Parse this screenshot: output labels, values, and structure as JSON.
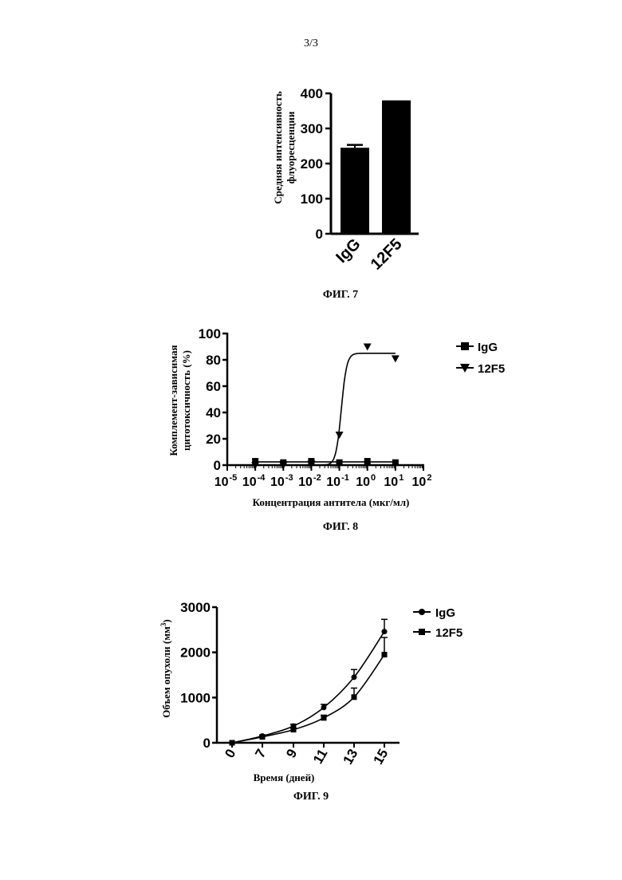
{
  "page_number": "3/3",
  "figures": [
    {
      "caption": "ФИГ. 7",
      "ylabel_lines": [
        "Средняя интенсивность",
        "флуоресценции"
      ],
      "chart_data": {
        "type": "bar",
        "categories": [
          "IgG",
          "12F5"
        ],
        "values": [
          245,
          380
        ],
        "errors": [
          8,
          0
        ],
        "ylim": [
          0,
          400
        ],
        "yticks": [
          "0",
          "100",
          "200",
          "300",
          "400"
        ]
      }
    },
    {
      "caption": "ФИГ. 8",
      "ylabel_lines": [
        "Комплемент-зависимая",
        "цитотоксичность (%)"
      ],
      "xlabel": "Концентрация антитела (мкг/мл)",
      "legend": [
        "IgG",
        "12F5"
      ],
      "chart_data": {
        "type": "scatter",
        "x_scale": "log",
        "xlim": [
          1e-05,
          100
        ],
        "ylim": [
          0,
          100
        ],
        "yticks": [
          "0",
          "20",
          "40",
          "60",
          "80",
          "100"
        ],
        "xtick_exponents": [
          "-5",
          "-4",
          "-3",
          "-2",
          "-1",
          "0",
          "1",
          "2"
        ],
        "series": [
          {
            "name": "IgG",
            "x": [
              0.0001,
              0.001,
              0.01,
              0.1,
              1,
              10
            ],
            "y": [
              3,
              2,
              3,
              2,
              3,
              2
            ],
            "fit": "flat",
            "fit_y": 2.5
          },
          {
            "name": "12F5",
            "x": [
              0.0001,
              0.001,
              0.01,
              0.1,
              1,
              10
            ],
            "y": [
              0,
              0,
              1,
              23,
              90,
              81
            ],
            "fit": "sigmoid",
            "bottom": 0,
            "top": 85,
            "log_ec50": -0.93,
            "hill": 4.5
          }
        ]
      }
    },
    {
      "caption": "ФИГ. 9",
      "ylabel_parts": [
        "Объем опухоли (мм",
        "3",
        ")"
      ],
      "xlabel": "Время (дней)",
      "legend": [
        "IgG",
        "12F5"
      ],
      "chart_data": {
        "type": "line",
        "categories": [
          "0",
          "7",
          "9",
          "11",
          "13",
          "15"
        ],
        "ylim": [
          0,
          3000
        ],
        "yticks": [
          "0",
          "1000",
          "2000",
          "3000"
        ],
        "series": [
          {
            "name": "IgG",
            "values": [
              0,
              150,
              370,
              780,
              1450,
              2460
            ],
            "errors": [
              0,
              20,
              40,
              70,
              170,
              270
            ]
          },
          {
            "name": "12F5",
            "values": [
              0,
              130,
              290,
              550,
              1010,
              1950
            ],
            "errors": [
              0,
              20,
              30,
              60,
              200,
              380
            ]
          }
        ]
      }
    }
  ]
}
